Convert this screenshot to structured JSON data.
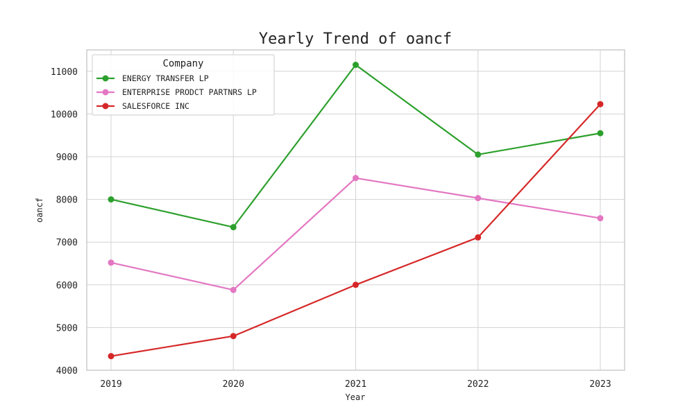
{
  "chart_data": {
    "type": "line",
    "title": "Yearly Trend of oancf",
    "xlabel": "Year",
    "ylabel": "oancf",
    "x": [
      "2019",
      "2020",
      "2021",
      "2022",
      "2023"
    ],
    "ylim": [
      4000,
      11500
    ],
    "yticks": [
      4000,
      5000,
      6000,
      7000,
      8000,
      9000,
      10000,
      11000
    ],
    "grid": true,
    "legend": {
      "title": "Company",
      "placement": "top-left"
    },
    "series": [
      {
        "name": "ENERGY TRANSFER LP",
        "color": "#2ca02c",
        "values": [
          8000,
          7350,
          11150,
          9050,
          9550
        ]
      },
      {
        "name": "ENTERPRISE PRODCT PARTNRS LP",
        "color": "#e377c2",
        "values": [
          6520,
          5880,
          8500,
          8030,
          7560
        ]
      },
      {
        "name": "SALESFORCE INC",
        "color": "#d62728",
        "values": [
          4330,
          4800,
          6000,
          7110,
          10230
        ]
      }
    ]
  }
}
